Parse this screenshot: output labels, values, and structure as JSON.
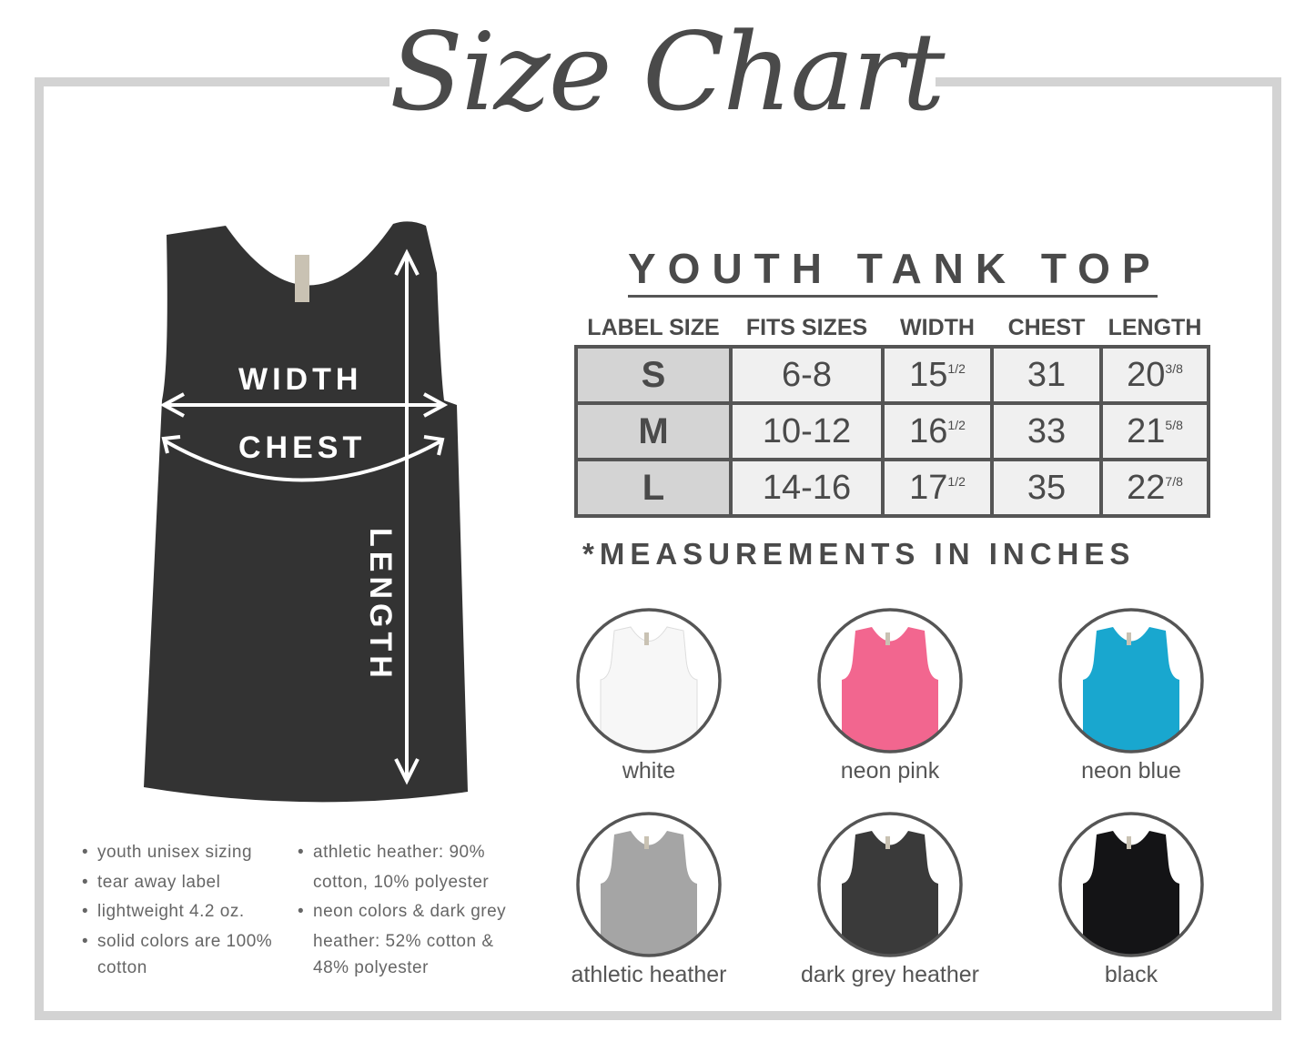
{
  "title": "Size Chart",
  "product": "YOUTH TANK TOP",
  "diagram_labels": {
    "width": "WIDTH",
    "chest": "CHEST",
    "length": "LENGTH"
  },
  "table": {
    "headers": [
      "LABEL SIZE",
      "FITS SIZES",
      "WIDTH",
      "CHEST",
      "LENGTH"
    ],
    "rows": [
      {
        "size": "S",
        "fits": "6-8",
        "width": "15",
        "width_frac": "1/2",
        "chest": "31",
        "length": "20",
        "length_frac": "3/8"
      },
      {
        "size": "M",
        "fits": "10-12",
        "width": "16",
        "width_frac": "1/2",
        "chest": "33",
        "length": "21",
        "length_frac": "5/8"
      },
      {
        "size": "L",
        "fits": "14-16",
        "width": "17",
        "width_frac": "1/2",
        "chest": "35",
        "length": "22",
        "length_frac": "7/8"
      }
    ]
  },
  "note": "*MEASUREMENTS IN INCHES",
  "colors": [
    {
      "label": "white",
      "hex": "#f7f7f7"
    },
    {
      "label": "neon pink",
      "hex": "#f2668f"
    },
    {
      "label": "neon blue",
      "hex": "#19a7cf"
    },
    {
      "label": "athletic heather",
      "hex": "#a5a5a5"
    },
    {
      "label": "dark grey heather",
      "hex": "#3a3a3a"
    },
    {
      "label": "black",
      "hex": "#141416"
    }
  ],
  "features_left": [
    "youth unisex sizing",
    "tear away label",
    "lightweight 4.2 oz.",
    "solid colors are 100%",
    "cotton"
  ],
  "features_right": [
    "athletic heather: 90%",
    "cotton, 10% polyester",
    "neon colors & dark grey",
    "heather: 52% cotton &",
    "48% polyester"
  ],
  "big_tank_color": "#333333"
}
